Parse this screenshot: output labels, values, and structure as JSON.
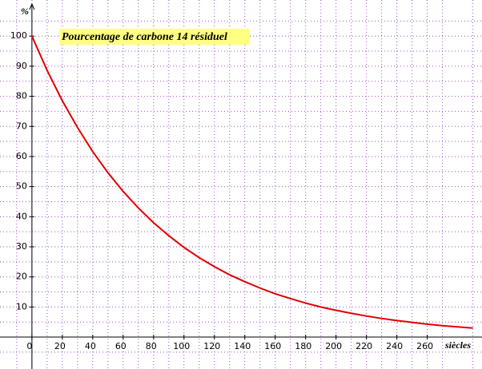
{
  "chart_data": {
    "type": "line",
    "title": "Pourcentage de carbone 14 résiduel",
    "x_label": "siècles",
    "y_label": "%",
    "x": [
      0,
      10,
      20,
      30,
      40,
      50,
      60,
      70,
      80,
      90,
      100,
      110,
      120,
      130,
      140,
      150,
      160,
      170,
      180,
      190,
      200,
      210,
      220,
      230,
      240,
      250,
      260,
      270,
      280,
      290
    ],
    "series": [
      {
        "color": "#e00000",
        "values": [
          100,
          88.6,
          78.5,
          69.6,
          61.6,
          54.6,
          48.4,
          42.9,
          38.0,
          33.7,
          29.8,
          26.4,
          23.4,
          20.7,
          18.4,
          16.3,
          14.4,
          12.8,
          11.3,
          10.0,
          8.9,
          7.9,
          7.0,
          6.2,
          5.5,
          4.9,
          4.3,
          3.8,
          3.4,
          3.0
        ]
      }
    ],
    "xlim": [
      -21,
      296
    ],
    "ylim": [
      -10.6,
      112
    ],
    "xticks": [
      0,
      20,
      40,
      60,
      80,
      100,
      120,
      140,
      160,
      180,
      200,
      220,
      240,
      260
    ],
    "yticks": [
      10,
      20,
      30,
      40,
      50,
      60,
      70,
      80,
      90,
      100
    ],
    "grid": true
  }
}
